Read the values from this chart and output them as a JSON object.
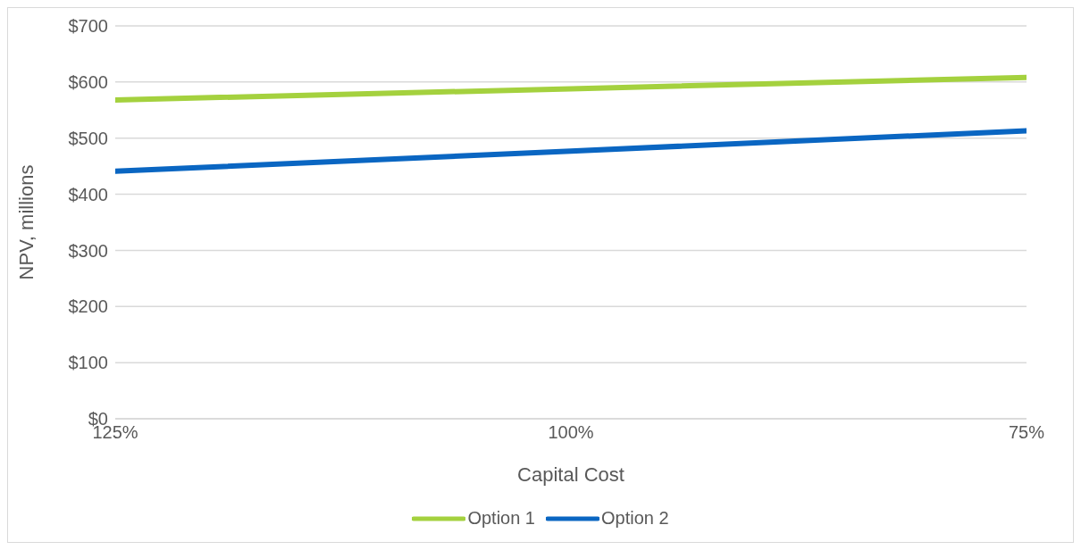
{
  "chart_data": {
    "type": "line",
    "xlabel": "Capital Cost",
    "ylabel": "NPV, millions",
    "xlim": [
      125,
      75
    ],
    "xticks": [
      {
        "value": 125,
        "label": "125%"
      },
      {
        "value": 100,
        "label": "100%"
      },
      {
        "value": 75,
        "label": "75%"
      }
    ],
    "ylim": [
      0,
      700
    ],
    "yticks": [
      {
        "value": 0,
        "label": "$0"
      },
      {
        "value": 100,
        "label": "$100"
      },
      {
        "value": 200,
        "label": "$200"
      },
      {
        "value": 300,
        "label": "$300"
      },
      {
        "value": 400,
        "label": "$400"
      },
      {
        "value": 500,
        "label": "$500"
      },
      {
        "value": 600,
        "label": "$600"
      },
      {
        "value": 700,
        "label": "$700"
      }
    ],
    "x": [
      125,
      100,
      75
    ],
    "series": [
      {
        "name": "Option 1",
        "color": "#a4d13e",
        "values": [
          568,
          588,
          608
        ]
      },
      {
        "name": "Option 2",
        "color": "#0a66c2",
        "values": [
          441,
          477,
          513
        ]
      }
    ],
    "grid": "y",
    "legend": "bottom",
    "marker": "none",
    "line_style": "solid"
  }
}
